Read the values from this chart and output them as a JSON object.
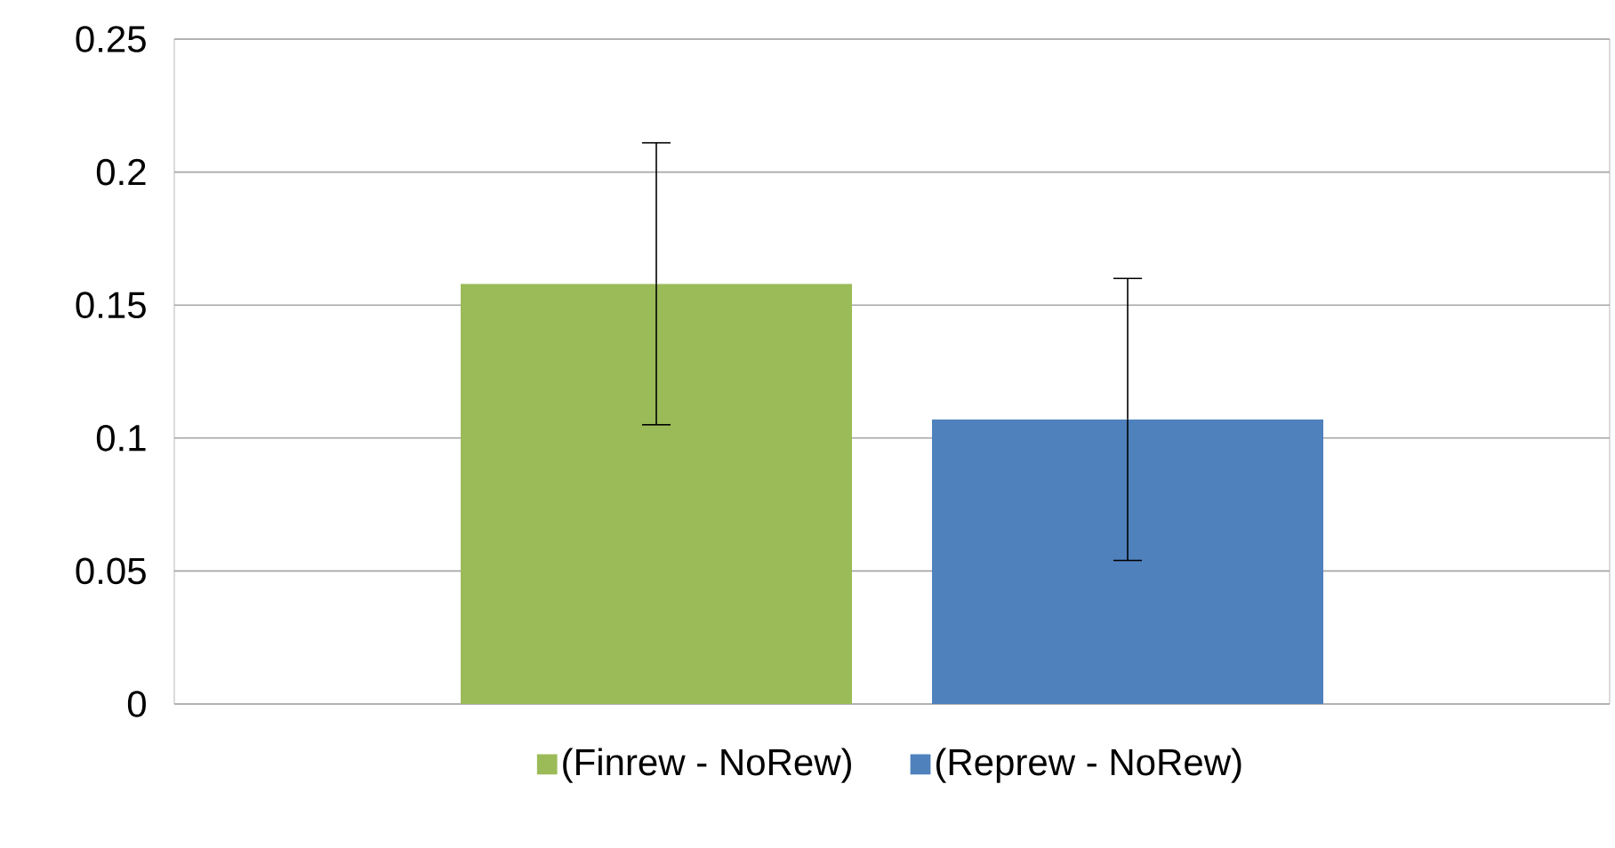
{
  "chart_data": {
    "type": "bar",
    "categories": [
      null
    ],
    "series": [
      {
        "name": "(Finrew - NoRew)",
        "color": "#9bbb59",
        "values": [
          0.158
        ],
        "errors": [
          0.053
        ]
      },
      {
        "name": "(Reprew - NoRew)",
        "color": "#4f81bd",
        "values": [
          0.107
        ],
        "errors": [
          0.053
        ]
      }
    ],
    "ylim": [
      0,
      0.25
    ],
    "yticks": [
      0,
      0.05,
      0.1,
      0.15,
      0.2,
      0.25
    ],
    "grid": "y",
    "legend": "bottom"
  }
}
